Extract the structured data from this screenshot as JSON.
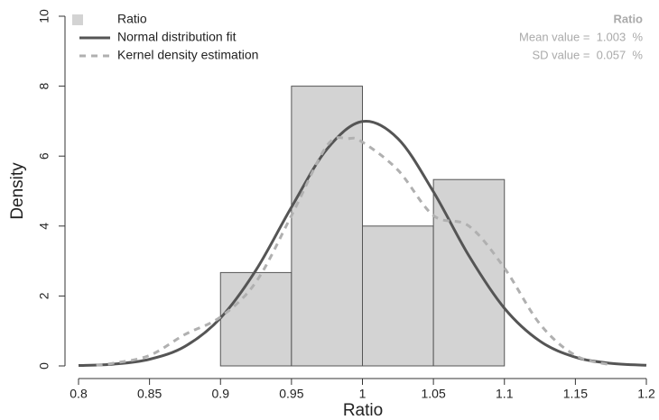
{
  "chart_data": {
    "type": "histogram",
    "name": "Ratio",
    "xlabel": "Ratio",
    "ylabel": "Density",
    "bins": [
      0.9,
      0.95,
      1.0,
      1.05,
      1.1
    ],
    "values": [
      2.67,
      8,
      4,
      5.33
    ],
    "color": "#d3d3d3",
    "lines": [
      {
        "name": "Normal distribution fit",
        "color": "#555555",
        "dashed": false,
        "x": [
          0.8,
          0.825,
          0.85,
          0.875,
          0.9,
          0.925,
          0.95,
          0.975,
          1.0,
          1.025,
          1.05,
          1.075,
          1.1,
          1.125,
          1.15,
          1.175,
          1.2
        ],
        "values": [
          0.012,
          0.053,
          0.19,
          0.56,
          1.37,
          2.74,
          4.54,
          6.2,
          6.99,
          6.5,
          4.98,
          3.15,
          1.65,
          0.71,
          0.25,
          0.074,
          0.018
        ]
      },
      {
        "name": "Kernel density estimation",
        "color": "#b0b0b0",
        "dashed": true,
        "x": [
          0.8125,
          0.825,
          0.85,
          0.875,
          0.9,
          0.925,
          0.95,
          0.975,
          0.99,
          1.0,
          1.025,
          1.05,
          1.075,
          1.1,
          1.125,
          1.15,
          1.175
        ],
        "values": [
          0.02,
          0.08,
          0.3,
          0.9,
          1.4,
          2.4,
          4.3,
          6.3,
          6.5,
          6.4,
          5.6,
          4.3,
          4.0,
          2.8,
          1.2,
          0.3,
          0.03
        ]
      }
    ],
    "annotations": [
      "Ratio",
      "Mean value =  1.003  %",
      "SD value =  0.057  %"
    ],
    "xlim": [
      0.8,
      1.2
    ],
    "ylim": [
      0,
      10
    ],
    "xticks": [
      0.8,
      0.85,
      0.9,
      0.95,
      1,
      1.05,
      1.1,
      1.15,
      1.2
    ],
    "yticks": [
      0,
      2,
      4,
      6,
      8,
      10
    ],
    "legend": "top-left"
  }
}
